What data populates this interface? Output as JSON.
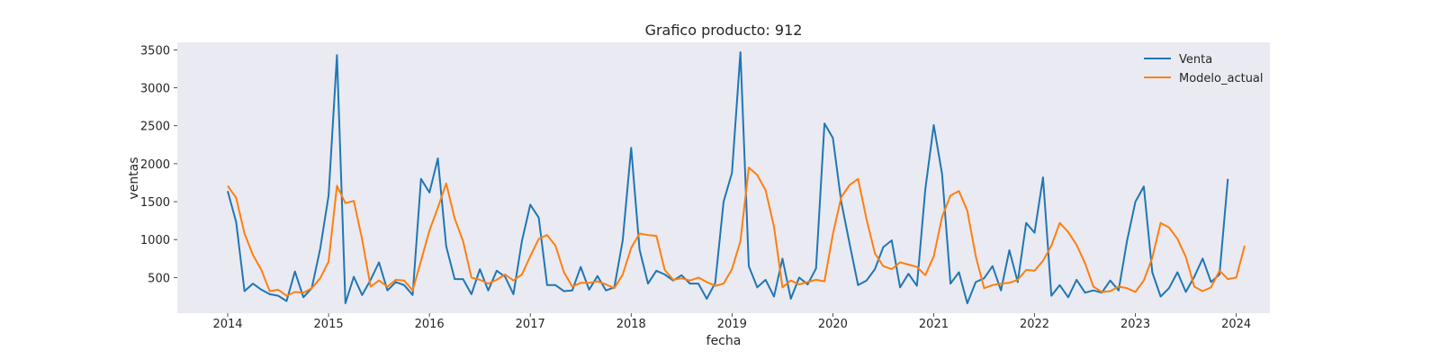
{
  "chart_data": {
    "type": "line",
    "title": "Grafico producto: 912",
    "xlabel": "fecha",
    "ylabel": "ventas",
    "x_start": "2014-01",
    "x_ticks": [
      "2014",
      "2015",
      "2016",
      "2017",
      "2018",
      "2019",
      "2020",
      "2021",
      "2022",
      "2023",
      "2024"
    ],
    "y_ticks": [
      500,
      1000,
      1500,
      2000,
      2500,
      3000,
      3500
    ],
    "xlim": [
      "2013-07",
      "2024-05"
    ],
    "ylim": [
      30,
      3600
    ],
    "grid": false,
    "legend": "top-right",
    "background": "#eaeaf2",
    "series": [
      {
        "name": "Venta",
        "color": "#1f77b4",
        "values": [
          1640,
          1230,
          320,
          420,
          340,
          280,
          260,
          190,
          580,
          240,
          360,
          880,
          1580,
          3430,
          160,
          510,
          270,
          470,
          700,
          330,
          440,
          400,
          270,
          1800,
          1620,
          2070,
          910,
          480,
          480,
          280,
          610,
          330,
          590,
          510,
          280,
          980,
          1460,
          1290,
          400,
          400,
          320,
          330,
          640,
          340,
          520,
          330,
          370,
          990,
          2210,
          870,
          420,
          590,
          540,
          460,
          530,
          420,
          420,
          220,
          430,
          1500,
          1880,
          3470,
          650,
          370,
          470,
          250,
          750,
          220,
          500,
          410,
          620,
          2530,
          2340,
          1500,
          940,
          400,
          460,
          610,
          900,
          990,
          370,
          550,
          390,
          1660,
          2510,
          1860,
          420,
          570,
          160,
          440,
          490,
          650,
          330,
          860,
          440,
          1220,
          1090,
          1820,
          260,
          400,
          240,
          470,
          300,
          330,
          300,
          460,
          330,
          980,
          1500,
          1700,
          570,
          250,
          360,
          570,
          310,
          510,
          750,
          440,
          540,
          1800
        ]
      },
      {
        "name": "Modelo_actual",
        "color": "#ff7f0e",
        "values": [
          1710,
          1550,
          1080,
          800,
          600,
          320,
          340,
          260,
          310,
          300,
          360,
          490,
          710,
          1710,
          1480,
          1510,
          1000,
          380,
          460,
          380,
          470,
          460,
          330,
          720,
          1120,
          1420,
          1740,
          1280,
          980,
          500,
          470,
          420,
          470,
          540,
          460,
          540,
          780,
          1010,
          1060,
          920,
          570,
          380,
          430,
          430,
          450,
          410,
          360,
          540,
          890,
          1080,
          1060,
          1050,
          600,
          470,
          490,
          460,
          500,
          440,
          390,
          420,
          610,
          980,
          1950,
          1850,
          1650,
          1170,
          370,
          460,
          410,
          440,
          470,
          450,
          1070,
          1560,
          1720,
          1800,
          1270,
          820,
          650,
          610,
          700,
          670,
          640,
          530,
          780,
          1300,
          1580,
          1640,
          1380,
          780,
          360,
          400,
          420,
          430,
          470,
          600,
          590,
          720,
          920,
          1220,
          1100,
          930,
          690,
          380,
          310,
          320,
          380,
          360,
          310,
          460,
          760,
          1220,
          1160,
          1010,
          770,
          380,
          320,
          370,
          590,
          480,
          500,
          920
        ]
      }
    ]
  }
}
